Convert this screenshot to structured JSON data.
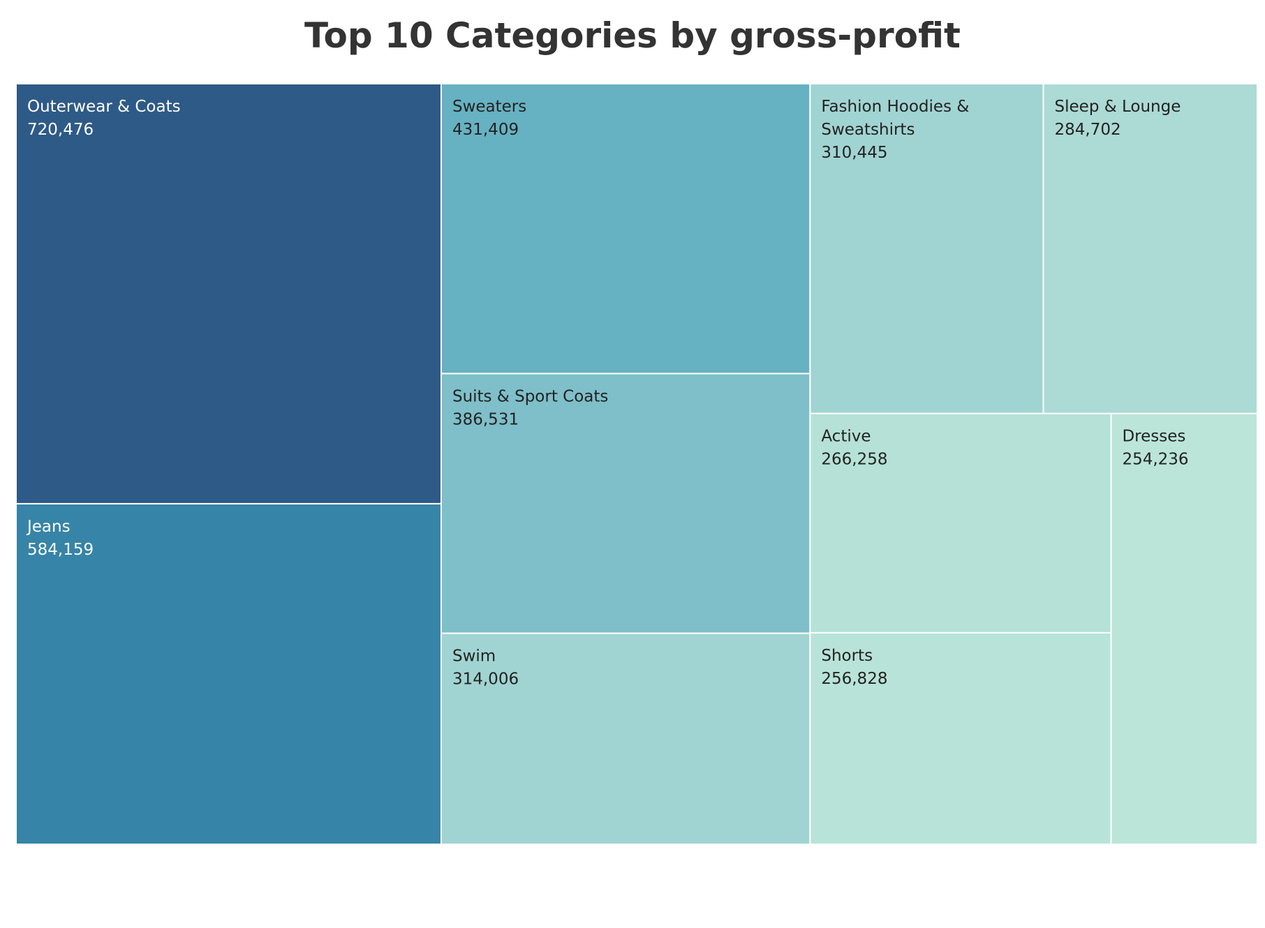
{
  "chart_data": {
    "type": "treemap",
    "title": "Top 10 Categories by gross-profit",
    "categories": [
      "Outerwear & Coats",
      "Jeans",
      "Sweaters",
      "Suits & Sport Coats",
      "Swim",
      "Fashion Hoodies & Sweatshirts",
      "Sleep & Lounge",
      "Active",
      "Shorts",
      "Dresses"
    ],
    "values": [
      720476,
      584159,
      431409,
      386531,
      314006,
      310445,
      284702,
      266258,
      256828,
      254236
    ],
    "value_labels": [
      "720,476",
      "584,159",
      "431,409",
      "386,531",
      "314,006",
      "310,445",
      "284,702",
      "266,258",
      "256,828",
      "254,236"
    ],
    "colors": [
      "#2e5a87",
      "#3684a7",
      "#66b2c2",
      "#7ebfc9",
      "#a0d4d2",
      "#a0d4d2",
      "#acdad5",
      "#b5e1d6",
      "#b8e3d8",
      "#bbe5d9"
    ],
    "label_colors": [
      "#ffffff",
      "#ffffff",
      "#222222",
      "#222222",
      "#222222",
      "#222222",
      "#222222",
      "#222222",
      "#222222",
      "#222222"
    ]
  }
}
